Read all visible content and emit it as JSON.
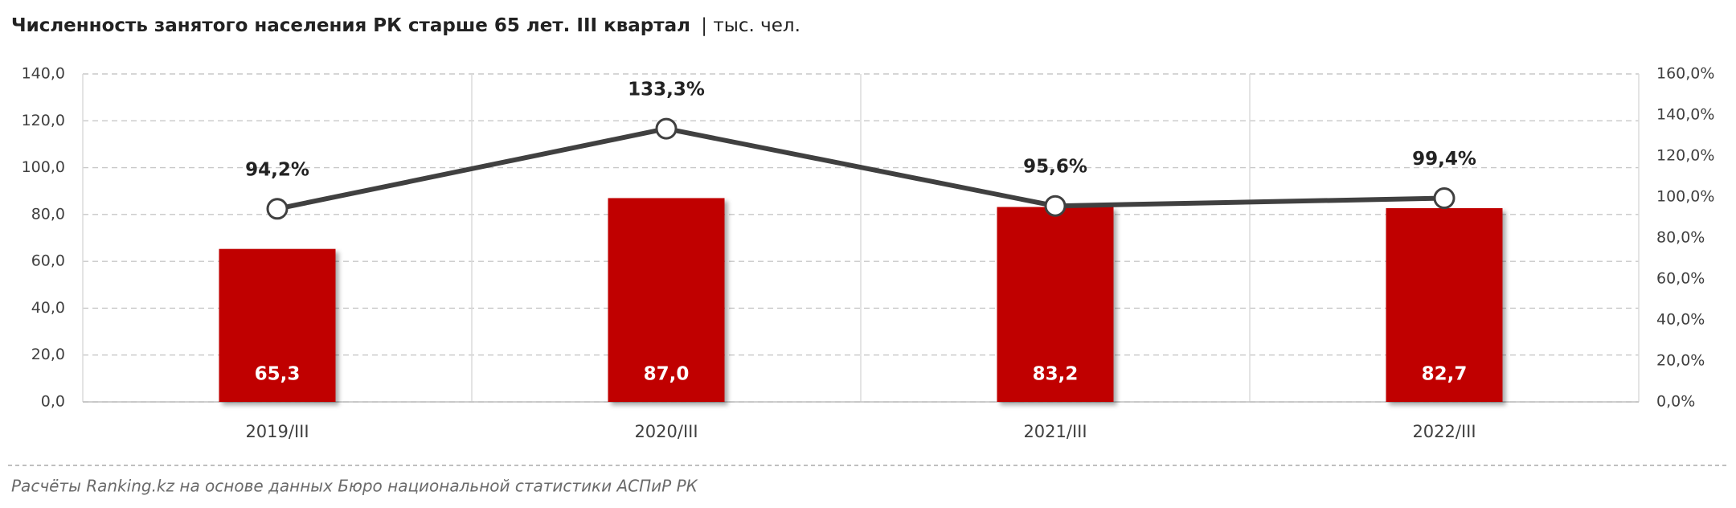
{
  "chart_data": {
    "type": "combo",
    "title": "Численность занятого населения РК старше 65 лет. III квартал",
    "unit": "| тыс. чел.",
    "source": "Расчёты Ranking.kz на основе данных Бюро национальной статистики АСПиР РК",
    "categories": [
      "2019/III",
      "2020/III",
      "2021/III",
      "2022/III"
    ],
    "series": [
      {
        "type": "bar",
        "color": "#c00000",
        "values": [
          65.3,
          87.0,
          83.2,
          82.7
        ],
        "value_labels": [
          "65,3",
          "87,0",
          "83,2",
          "82,7"
        ]
      },
      {
        "type": "line",
        "axis": "y2",
        "color": "#404040",
        "values": [
          94.2,
          133.3,
          95.6,
          99.4
        ],
        "value_labels": [
          "94,2%",
          "133,3%",
          "95,6%",
          "99,4%"
        ]
      }
    ],
    "ylim": [
      0,
      140
    ],
    "yticks": [
      {
        "value": 0,
        "label": "0,0"
      },
      {
        "value": 20,
        "label": "20,0"
      },
      {
        "value": 40,
        "label": "40,0"
      },
      {
        "value": 60,
        "label": "60,0"
      },
      {
        "value": 80,
        "label": "80,0"
      },
      {
        "value": 100,
        "label": "100,0"
      },
      {
        "value": 120,
        "label": "120,0"
      },
      {
        "value": 140,
        "label": "140,0"
      }
    ],
    "y2lim": [
      0,
      160
    ],
    "y2ticks": [
      {
        "value": 0,
        "label": "0,0%"
      },
      {
        "value": 20,
        "label": "20,0%"
      },
      {
        "value": 40,
        "label": "40,0%"
      },
      {
        "value": 60,
        "label": "60,0%"
      },
      {
        "value": 80,
        "label": "80,0%"
      },
      {
        "value": 100,
        "label": "100,0%"
      },
      {
        "value": 120,
        "label": "120,0%"
      },
      {
        "value": 140,
        "label": "140,0%"
      },
      {
        "value": 160,
        "label": "160,0%"
      }
    ],
    "grid": true
  }
}
